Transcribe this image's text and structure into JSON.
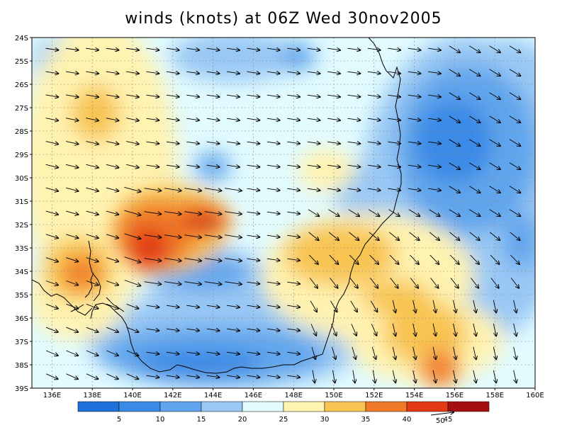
{
  "title": "winds (knots) at 06Z Wed 30nov2005",
  "axes": {
    "lat_labels": [
      "24S",
      "25S",
      "26S",
      "27S",
      "28S",
      "29S",
      "30S",
      "31S",
      "32S",
      "33S",
      "34S",
      "35S",
      "36S",
      "37S",
      "38S",
      "39S"
    ],
    "lon_labels": [
      "136E",
      "138E",
      "140E",
      "142E",
      "144E",
      "146E",
      "148E",
      "150E",
      "152E",
      "154E",
      "156E",
      "158E",
      "160E"
    ],
    "lat_range": [
      -39,
      -24
    ],
    "lon_range": [
      135,
      160
    ],
    "grid": "dashed"
  },
  "colorbar": {
    "labels": [
      "5",
      "10",
      "15",
      "20",
      "25",
      "30",
      "35",
      "40",
      "45"
    ],
    "colors": [
      "#1e6fd9",
      "#3a8ae6",
      "#60a5ec",
      "#99c8f4",
      "#e1fbff",
      "#fff3b0",
      "#f8c552",
      "#f07a28",
      "#e33a14",
      "#a50f0f"
    ],
    "reference_vector_label": "50"
  },
  "legend_colors": {
    "coast": "#000000"
  }
}
